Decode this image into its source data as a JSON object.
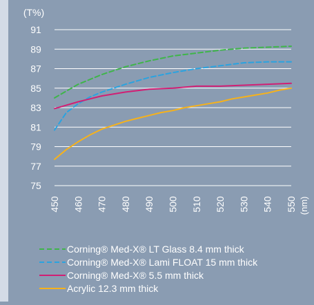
{
  "chart_data": {
    "type": "line",
    "y_unit_label": "(T%)",
    "x_unit_label": "(nm)",
    "xlim": [
      450,
      550
    ],
    "ylim": [
      75,
      91
    ],
    "x_ticks": [
      "450",
      "460",
      "470",
      "480",
      "490",
      "500",
      "510",
      "520",
      "530",
      "540",
      "550"
    ],
    "y_ticks": [
      "75",
      "77",
      "79",
      "81",
      "83",
      "85",
      "87",
      "89",
      "91"
    ],
    "grid": "horizontal",
    "legend_position": "bottom-left",
    "series": [
      {
        "name": "Corning® Med-X® LT Glass 8.4 mm thick",
        "color": "#3fb54a",
        "dash": "dashed",
        "x": [
          450,
          460,
          470,
          480,
          490,
          500,
          510,
          520,
          530,
          540,
          550
        ],
        "y": [
          84.0,
          85.4,
          86.4,
          87.2,
          87.8,
          88.3,
          88.6,
          88.9,
          89.1,
          89.2,
          89.3
        ]
      },
      {
        "name": "Corning® Med-X® Lami FLOAT 15 mm thick",
        "color": "#2aa3e0",
        "dash": "dashed",
        "x": [
          450,
          455,
          460,
          465,
          470,
          480,
          490,
          500,
          510,
          520,
          530,
          540,
          550
        ],
        "y": [
          80.7,
          82.5,
          83.4,
          84.1,
          84.6,
          85.4,
          86.1,
          86.6,
          87.0,
          87.3,
          87.6,
          87.7,
          87.7
        ]
      },
      {
        "name": "Corning® Med-X® 5.5 mm thick",
        "color": "#d11f74",
        "dash": "solid",
        "x": [
          450,
          460,
          470,
          480,
          490,
          500,
          510,
          520,
          530,
          540,
          550
        ],
        "y": [
          82.9,
          83.6,
          84.2,
          84.6,
          84.9,
          85.0,
          85.2,
          85.2,
          85.3,
          85.4,
          85.5
        ]
      },
      {
        "name": "Acrylic 12.3 mm thick",
        "color": "#f7b21a",
        "dash": "solid",
        "x": [
          450,
          455,
          460,
          465,
          470,
          475,
          480,
          485,
          490,
          495,
          500,
          505,
          510,
          515,
          520,
          525,
          530,
          535,
          540,
          545,
          550
        ],
        "y": [
          77.7,
          78.7,
          79.5,
          80.2,
          80.8,
          81.2,
          81.6,
          81.9,
          82.2,
          82.5,
          82.7,
          83.0,
          83.2,
          83.4,
          83.6,
          83.9,
          84.1,
          84.3,
          84.5,
          84.8,
          85.0
        ]
      }
    ]
  }
}
